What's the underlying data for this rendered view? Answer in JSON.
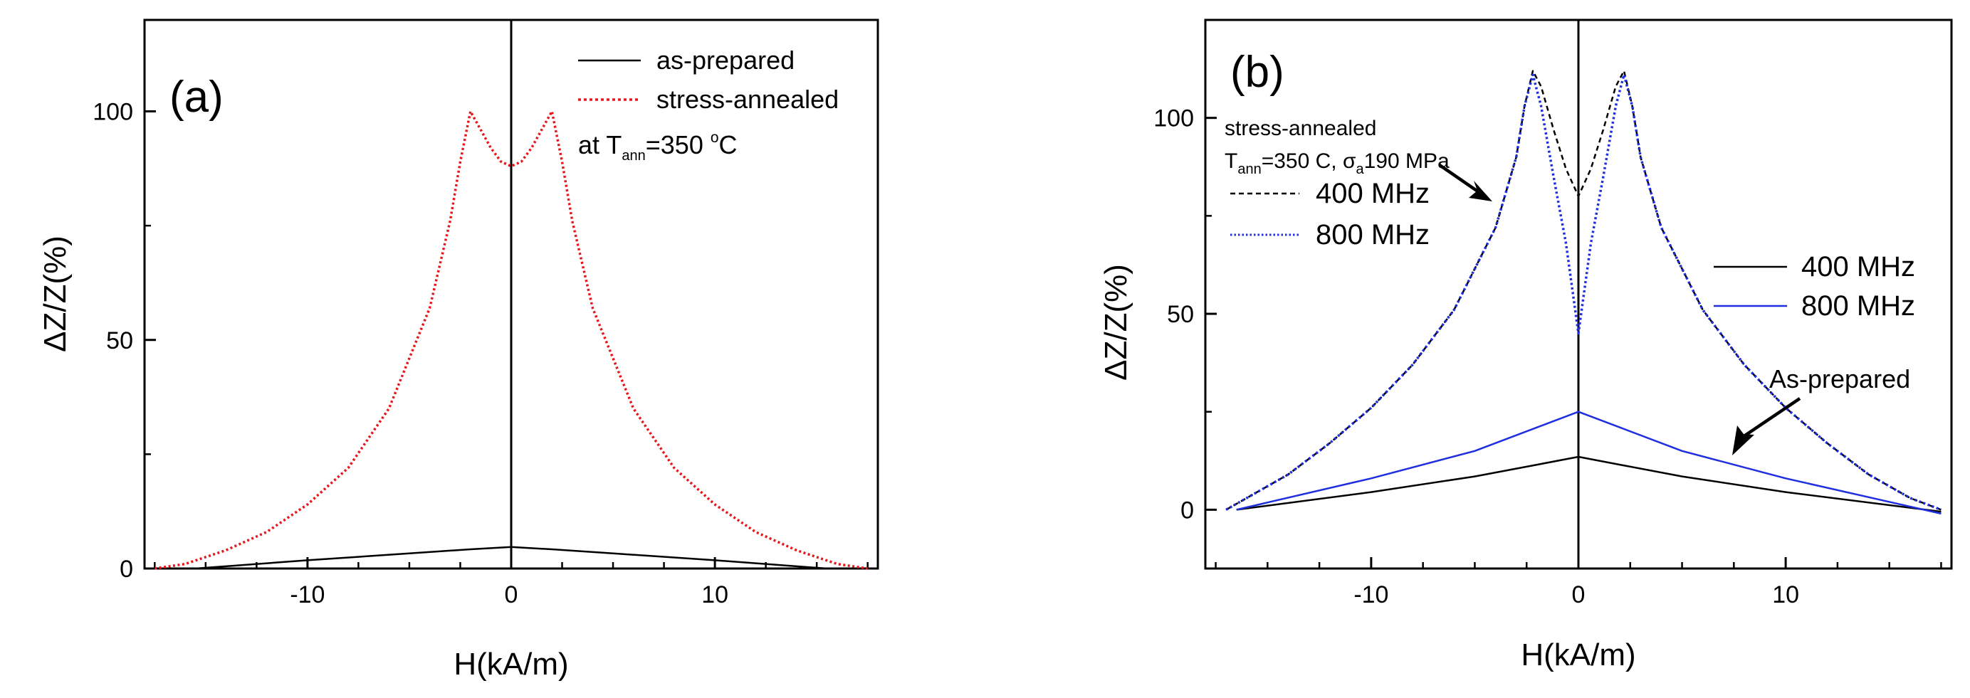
{
  "chart_data": [
    {
      "type": "line",
      "panel_label": "(a)",
      "xlabel": "H(kA/m)",
      "ylabel": "ΔZ/Z(%)",
      "xlim": [
        -18,
        18
      ],
      "ylim": [
        0,
        120
      ],
      "xticks": [
        -10,
        0,
        10
      ],
      "xtick_labels": [
        "-10",
        "0",
        "10"
      ],
      "yticks": [
        0,
        50,
        100
      ],
      "ytick_labels": [
        "0",
        "50",
        "100"
      ],
      "legend": {
        "placement": "top-right"
      },
      "annotation": {
        "prefix": "at T",
        "subscript": "ann",
        "middle": "=350 ",
        "superscript": "o",
        "suffix": "C"
      },
      "series": [
        {
          "name": "as-prepared",
          "color": "#000000",
          "dash": "solid",
          "x": [
            -15.5,
            -10,
            -5,
            -2,
            0,
            2,
            5,
            10,
            15.5
          ],
          "y": [
            0,
            1.8,
            3.3,
            4.2,
            4.7,
            4.2,
            3.3,
            1.8,
            0
          ]
        },
        {
          "name": "stress-annealed",
          "color": "#e8161a",
          "dash": "dotted",
          "x": [
            -17.5,
            -16,
            -14,
            -12,
            -10,
            -8,
            -6,
            -4,
            -3,
            -2.5,
            -2,
            -1.5,
            -1,
            -0.5,
            0,
            0.5,
            1,
            1.5,
            2,
            2.5,
            3,
            4,
            6,
            8,
            10,
            12,
            14,
            16,
            17.5
          ],
          "y": [
            0,
            1,
            4,
            8,
            14,
            22,
            35,
            57,
            76,
            89,
            100,
            96,
            92,
            89,
            88,
            89,
            92,
            96,
            100,
            89,
            76,
            57,
            35,
            22,
            14,
            8,
            4,
            1,
            0
          ]
        }
      ]
    },
    {
      "type": "line",
      "panel_label": "(b)",
      "xlabel": "H(kA/m)",
      "ylabel": "ΔZ/Z(%)",
      "xlim": [
        -18,
        18
      ],
      "ylim": [
        -15,
        125
      ],
      "xticks": [
        -10,
        0,
        10
      ],
      "xtick_labels": [
        "-10",
        "0",
        "10"
      ],
      "yticks": [
        0,
        50,
        100
      ],
      "ytick_labels": [
        "0",
        "50",
        "100"
      ],
      "legend_annealed": {
        "title": "stress-annealed",
        "condition": {
          "t": "T",
          "t_sub": "ann",
          "mid": "=350 C, σ",
          "s_sub": "a",
          "end": "190 MPa"
        },
        "placement": "top-left"
      },
      "legend_asprepared": {
        "placement": "right"
      },
      "annotation": "As-prepared",
      "series": [
        {
          "name": "400 MHz",
          "group": "as-prepared",
          "color": "#000000",
          "dash": "solid",
          "x": [
            -16.5,
            -10,
            -5,
            -2,
            0,
            2,
            5,
            10,
            17.5
          ],
          "y": [
            0,
            4.5,
            8.5,
            11.5,
            13.5,
            11.5,
            8.5,
            4.5,
            -0.5
          ]
        },
        {
          "name": "800 MHz",
          "group": "as-prepared",
          "color": "#1f2fe0",
          "dash": "solid",
          "x": [
            -16.5,
            -10,
            -5,
            -2,
            0,
            2,
            5,
            10,
            17.5
          ],
          "y": [
            0,
            8,
            15,
            21,
            25,
            21,
            15,
            8,
            -1
          ]
        },
        {
          "name": "400 MHz",
          "group": "stress-annealed",
          "color": "#000000",
          "dash": "dashed",
          "x": [
            -17,
            -16,
            -14,
            -12,
            -10,
            -8,
            -6,
            -4,
            -3,
            -2.6,
            -2.2,
            -1.8,
            -1.2,
            -0.6,
            0,
            0.6,
            1.2,
            1.8,
            2.2,
            2.6,
            3,
            4,
            6,
            8,
            10,
            12,
            14,
            16,
            17.5
          ],
          "y": [
            0,
            3,
            9,
            17,
            26,
            37,
            51,
            72,
            90,
            103,
            112,
            108,
            97,
            87,
            80,
            87,
            97,
            108,
            112,
            103,
            90,
            72,
            51,
            37,
            26,
            17,
            9,
            3,
            0
          ]
        },
        {
          "name": "800 MHz",
          "group": "stress-annealed",
          "color": "#1f2fe0",
          "dash": "dotted",
          "x": [
            -17,
            -16,
            -14,
            -12,
            -10,
            -8,
            -6,
            -4,
            -3,
            -2.6,
            -2.2,
            -1.8,
            -1.2,
            -0.6,
            0,
            0.6,
            1.2,
            1.8,
            2.2,
            2.6,
            3,
            4,
            6,
            8,
            10,
            12,
            14,
            16,
            17.5
          ],
          "y": [
            0,
            3,
            9,
            17,
            26,
            37,
            51,
            72,
            90,
            103,
            111,
            103,
            85,
            68,
            45,
            68,
            85,
            103,
            111,
            103,
            90,
            72,
            51,
            37,
            26,
            17,
            9,
            3,
            0
          ]
        }
      ]
    }
  ]
}
